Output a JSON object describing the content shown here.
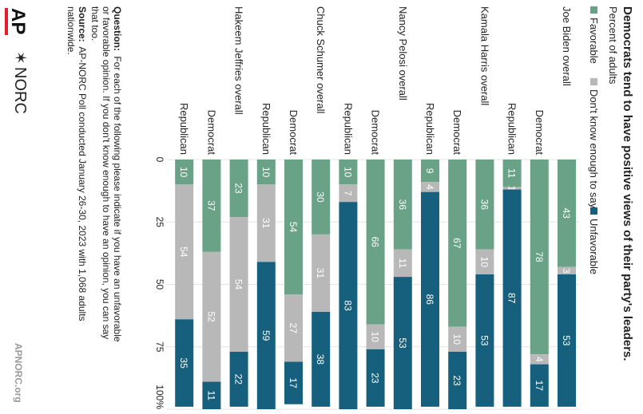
{
  "chart_data": {
    "type": "bar",
    "stacked": true,
    "orientation": "horizontal",
    "title": "Democrats tend to have positive views of their party's leaders.",
    "subtitle": "Percent of adults",
    "xlim": [
      0,
      100
    ],
    "xticks": [
      "0",
      "25",
      "50",
      "75",
      "100%"
    ],
    "legend": {
      "placement": "top",
      "entries": [
        {
          "name": "Favorable",
          "color": "#6aa287"
        },
        {
          "name": "Don't know enough to say",
          "color": "#b8b8b8"
        },
        {
          "name": "Unfavorable",
          "color": "#17607d"
        }
      ]
    },
    "rows": [
      {
        "group": "Joe Biden overall",
        "label": "",
        "values": [
          43,
          3,
          53
        ]
      },
      {
        "group": "",
        "label": "Democrat",
        "values": [
          78,
          4,
          17
        ]
      },
      {
        "group": "",
        "label": "Republican",
        "values": [
          11,
          1,
          87
        ]
      },
      {
        "group": "Kamala Harris overall",
        "label": "",
        "values": [
          36,
          10,
          53
        ]
      },
      {
        "group": "",
        "label": "Democrat",
        "values": [
          67,
          10,
          23
        ]
      },
      {
        "group": "",
        "label": "Republican",
        "values": [
          9,
          4,
          86
        ]
      },
      {
        "group": "Nancy Pelosi overall",
        "label": "",
        "values": [
          36,
          11,
          53
        ]
      },
      {
        "group": "",
        "label": "Democrat",
        "values": [
          66,
          10,
          23
        ]
      },
      {
        "group": "",
        "label": "Republican",
        "values": [
          10,
          7,
          83
        ]
      },
      {
        "group": "Chuck Schumer overall",
        "label": "",
        "values": [
          30,
          31,
          38
        ]
      },
      {
        "group": "",
        "label": "Democrat",
        "values": [
          54,
          27,
          17
        ]
      },
      {
        "group": "",
        "label": "Republican",
        "values": [
          10,
          31,
          59
        ]
      },
      {
        "group": "Hakeem Jeffries overall",
        "label": "",
        "values": [
          23,
          54,
          22
        ]
      },
      {
        "group": "",
        "label": "Democrat",
        "values": [
          37,
          52,
          11
        ]
      },
      {
        "group": "",
        "label": "Republican",
        "values": [
          10,
          54,
          35
        ]
      }
    ]
  },
  "footer": {
    "question_label": "Question:",
    "question_lines": [
      "For each of the following please indicate if you have an unfavorable",
      "or favorable opinion. If you don't know enough to have an opinion, you can say",
      "that too."
    ],
    "source_label": "Source:",
    "source_lines": [
      "AP-NORC Poll conducted January 26-30, 2023 with 1,068 adults",
      "nationwide."
    ],
    "ap_logo": "AP",
    "norc_logo": "NORC",
    "website": "APNORC.org"
  },
  "colors": {
    "favorable": "#6aa287",
    "dont_know": "#b8b8b8",
    "unfavorable": "#17607d",
    "text": "#222222",
    "ap_red": "#e0202e",
    "website": "#9a9a9a"
  }
}
